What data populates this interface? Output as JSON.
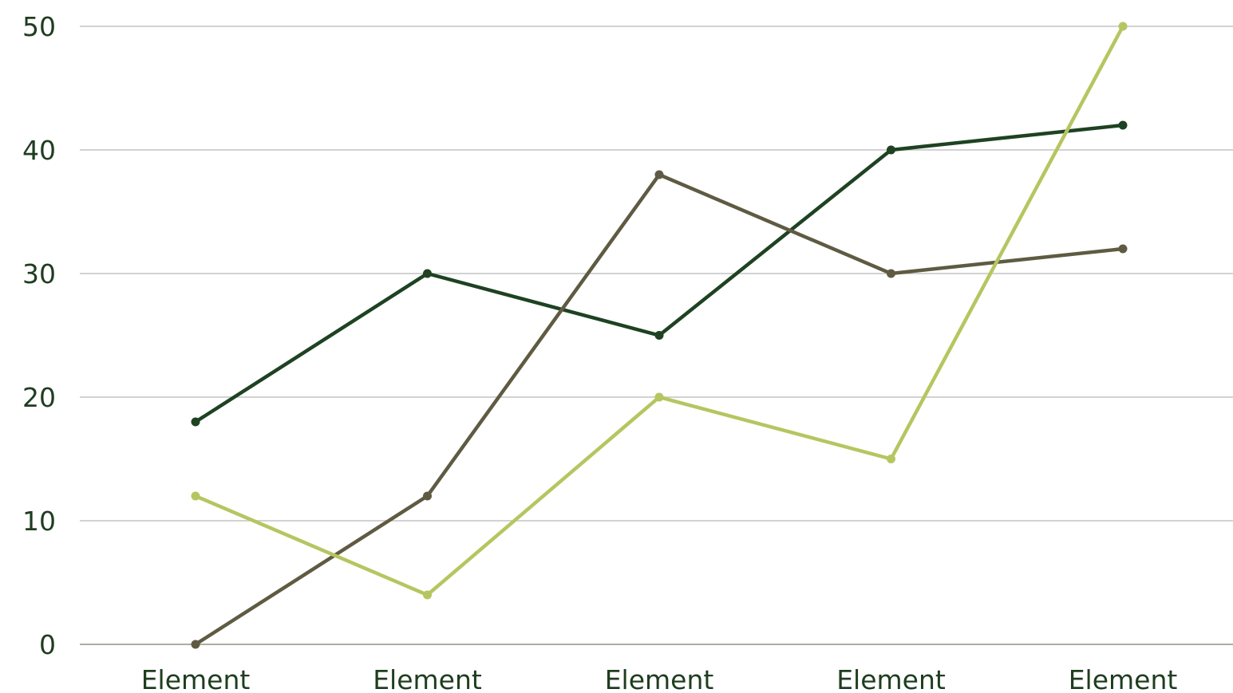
{
  "chart_data": {
    "type": "line",
    "categories": [
      "Element",
      "Element",
      "Element",
      "Element",
      "Element"
    ],
    "ylim": [
      0,
      50
    ],
    "yticks": [
      0,
      10,
      20,
      30,
      40,
      50
    ],
    "grid": true,
    "legend": "none",
    "title": "",
    "xlabel": "",
    "ylabel": "",
    "series": [
      {
        "values": [
          18,
          30,
          25,
          40,
          42
        ],
        "color": "#1e4222"
      },
      {
        "values": [
          0,
          12,
          38,
          30,
          32
        ],
        "color": "#5f5b43"
      },
      {
        "values": [
          12,
          4,
          20,
          15,
          50
        ],
        "color": "#b5c660"
      }
    ]
  }
}
